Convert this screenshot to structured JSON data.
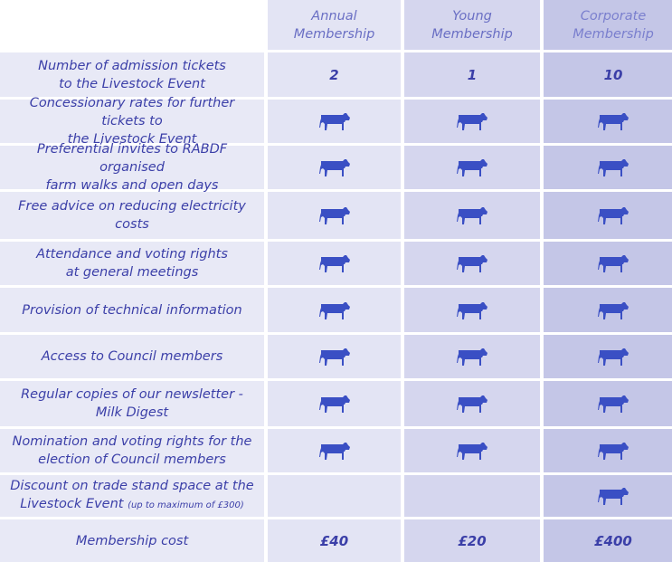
{
  "columns": [
    {
      "line1": "Annual",
      "line2": "Membership"
    },
    {
      "line1": "Young",
      "line2": "Membership"
    },
    {
      "line1": "Corporate",
      "line2": "Membership"
    }
  ],
  "rows": [
    {
      "line1": "Number of admission tickets",
      "line2": "to the Livestock Event",
      "values": [
        "2",
        "1",
        "10"
      ]
    },
    {
      "line1": "Concessionary rates for further tickets to",
      "line2": "the Livestock Event",
      "values": [
        "cow-icon",
        "cow-icon",
        "cow-icon"
      ]
    },
    {
      "line1": "Preferential invites to RABDF organised",
      "line2": "farm walks and open days",
      "values": [
        "cow-icon",
        "cow-icon",
        "cow-icon"
      ]
    },
    {
      "line1": "Free advice on reducing electricity costs",
      "line2": "",
      "values": [
        "cow-icon",
        "cow-icon",
        "cow-icon"
      ]
    },
    {
      "line1": "Attendance and voting rights",
      "line2": "at general meetings",
      "values": [
        "cow-icon",
        "cow-icon",
        "cow-icon"
      ]
    },
    {
      "line1": "Provision of technical information",
      "line2": "",
      "values": [
        "cow-icon",
        "cow-icon",
        "cow-icon"
      ]
    },
    {
      "line1": "Access to Council members",
      "line2": "",
      "values": [
        "cow-icon",
        "cow-icon",
        "cow-icon"
      ]
    },
    {
      "line1": "Regular copies of our newsletter -",
      "line2": "Milk Digest",
      "values": [
        "cow-icon",
        "cow-icon",
        "cow-icon"
      ]
    },
    {
      "line1": "Nomination and voting rights for the",
      "line2": "election of Council members",
      "values": [
        "cow-icon",
        "cow-icon",
        "cow-icon"
      ]
    },
    {
      "line1": "Discount on trade stand space at the",
      "line2": "Livestock Event",
      "note": "(up to maximum of £300)",
      "values": [
        "",
        "",
        "cow-icon"
      ]
    },
    {
      "line1": "Membership cost",
      "line2": "",
      "values": [
        "£40",
        "£20",
        "£400"
      ]
    }
  ],
  "colors": {
    "text": "#3b3fa8",
    "cow": "#3a4fc4"
  }
}
